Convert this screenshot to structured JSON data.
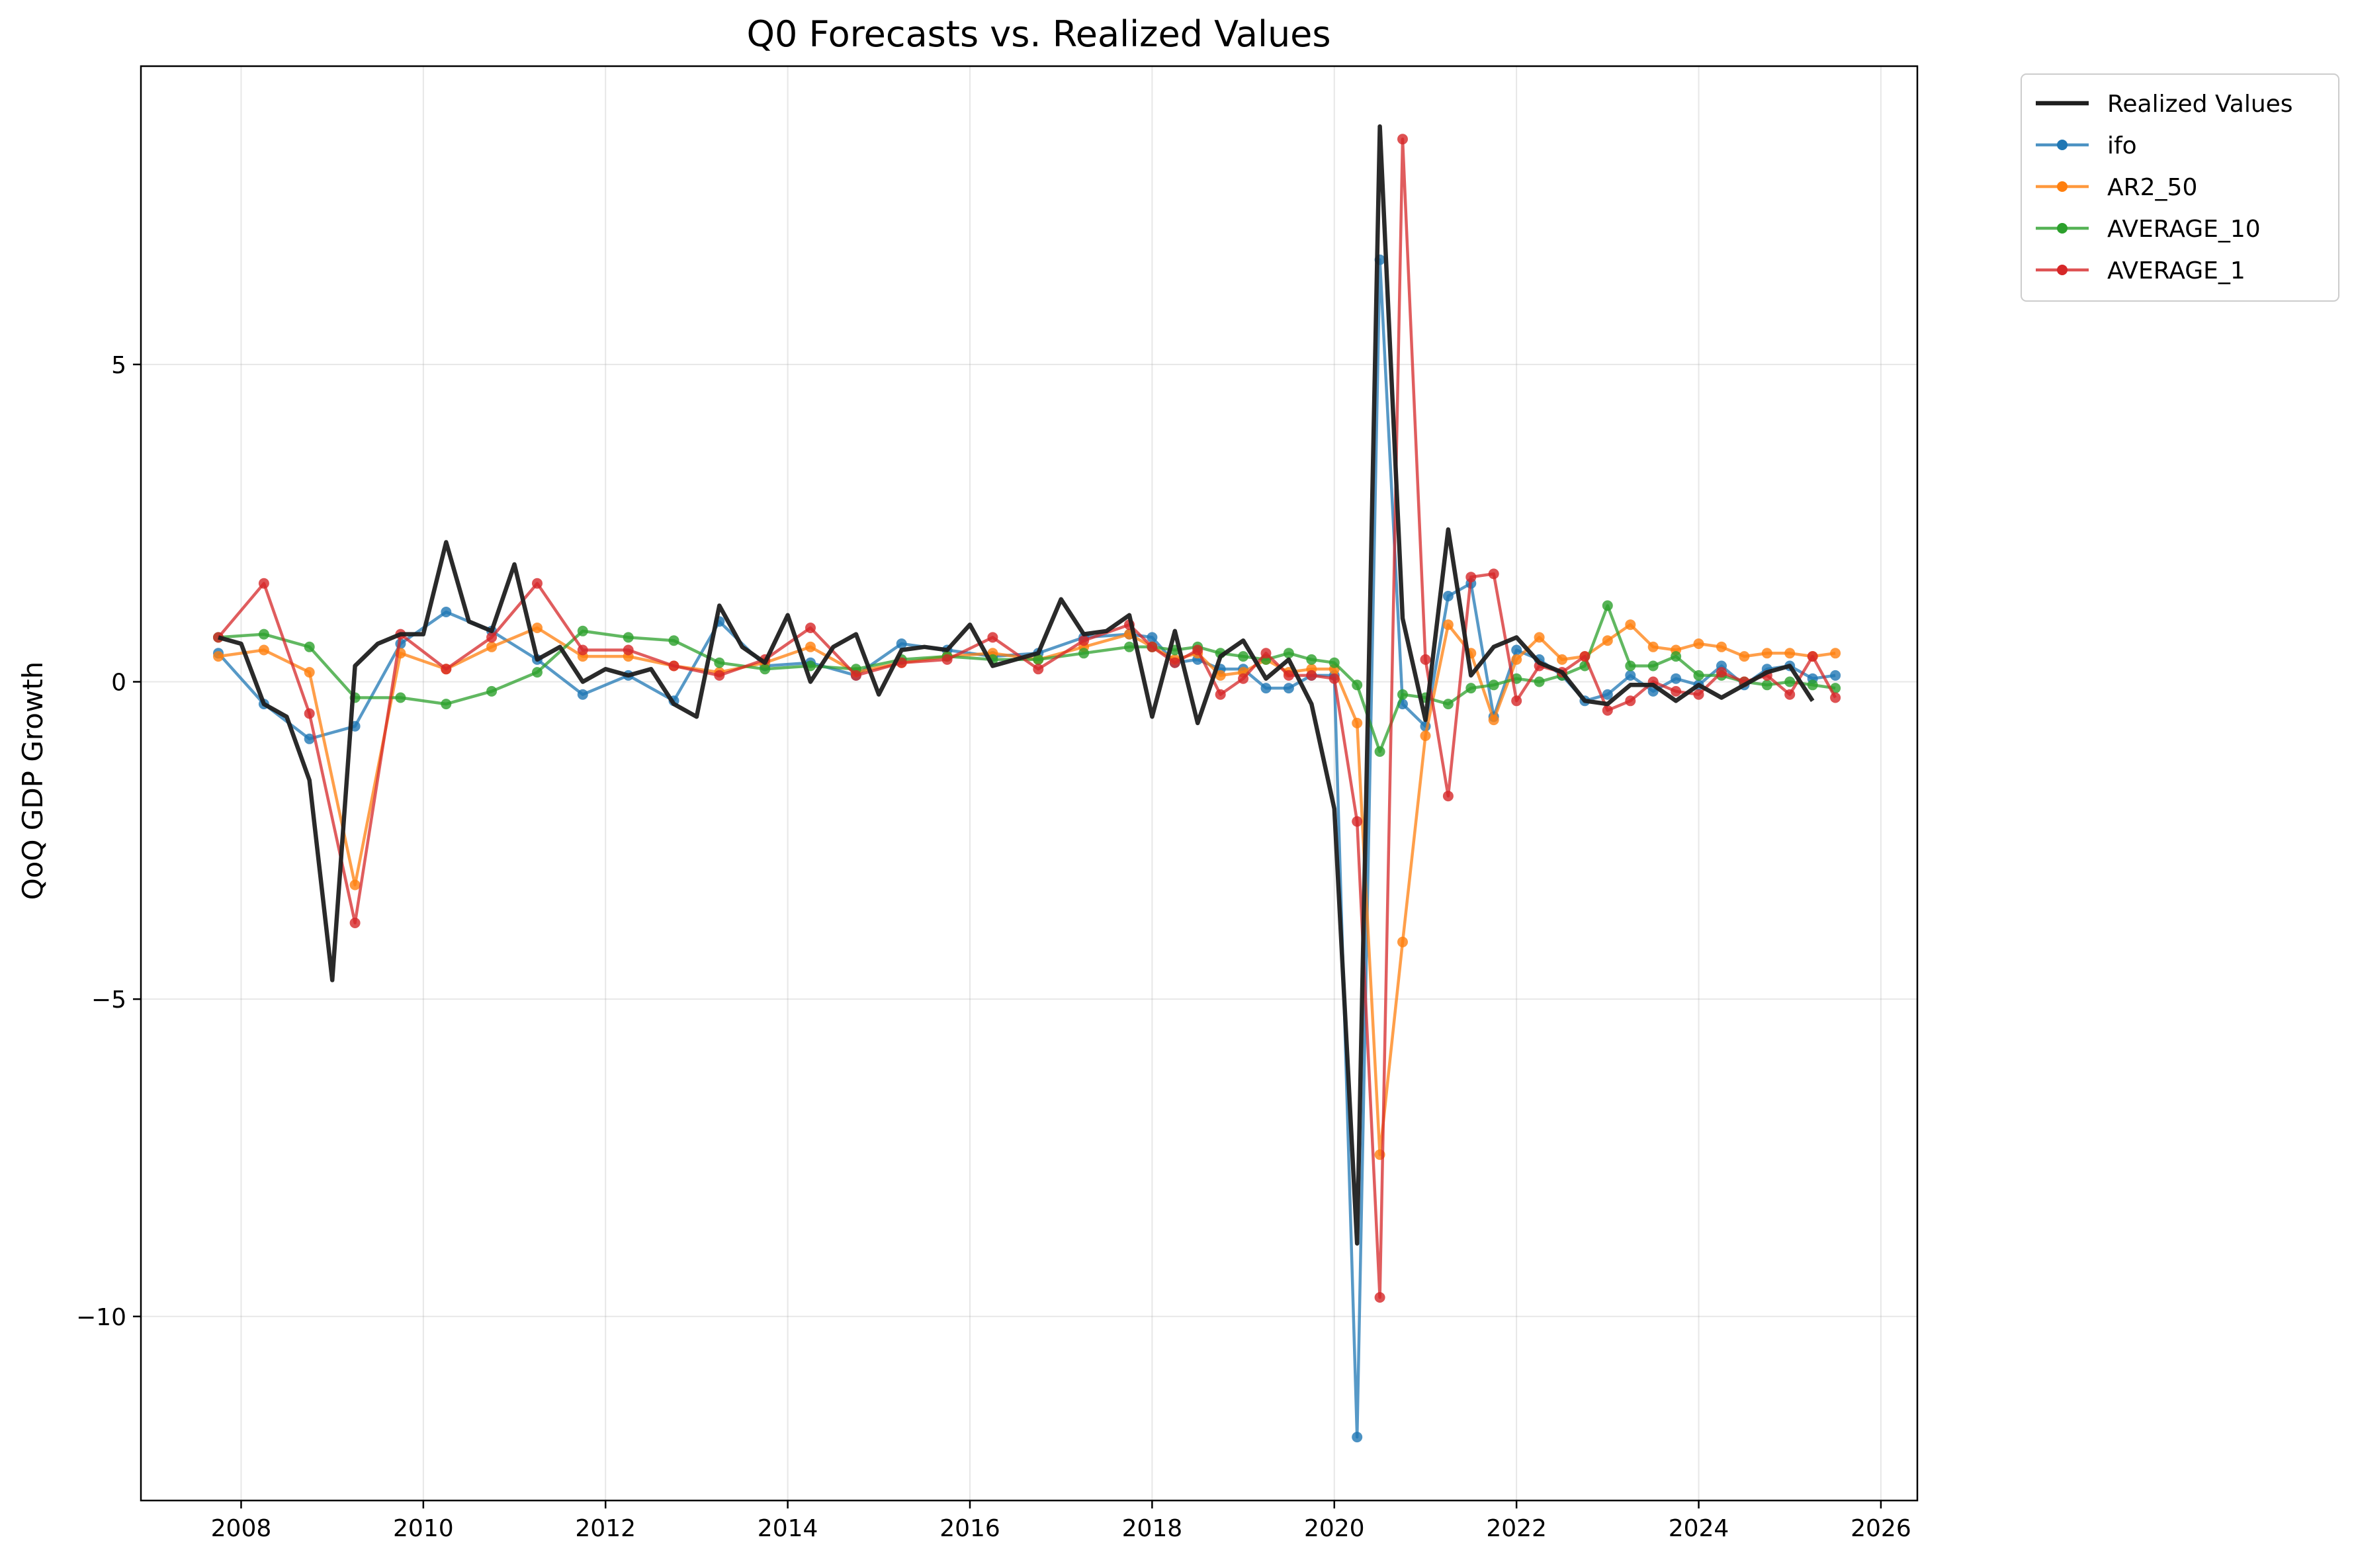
{
  "chart_data": {
    "type": "line",
    "title": "Q0 Forecasts vs. Realized Values",
    "xlabel": "",
    "ylabel": "QoQ GDP Growth",
    "xlim": [
      2006.9,
      2026.4
    ],
    "ylim": [
      -12.9,
      9.7
    ],
    "x_ticks": [
      2008,
      2010,
      2012,
      2014,
      2016,
      2018,
      2020,
      2022,
      2024,
      2026
    ],
    "x_tick_labels": [
      "2008",
      "2010",
      "2012",
      "2014",
      "2016",
      "2018",
      "2020",
      "2022",
      "2024",
      "2026"
    ],
    "y_ticks": [
      -10,
      -5,
      0,
      5
    ],
    "y_tick_labels": [
      "−10",
      "−5",
      "0",
      "5"
    ],
    "grid": true,
    "legend_position": "outside-top-right",
    "series": [
      {
        "name": "Realized Values",
        "color": "#1f1f1f",
        "markers": false,
        "x": [
          2007.75,
          2008.0,
          2008.25,
          2008.5,
          2008.75,
          2009.0,
          2009.25,
          2009.5,
          2009.75,
          2010.0,
          2010.25,
          2010.5,
          2010.75,
          2011.0,
          2011.25,
          2011.5,
          2011.75,
          2012.0,
          2012.25,
          2012.5,
          2012.75,
          2013.0,
          2013.25,
          2013.5,
          2013.75,
          2014.0,
          2014.25,
          2014.5,
          2014.75,
          2015.0,
          2015.25,
          2015.5,
          2015.75,
          2016.0,
          2016.25,
          2016.5,
          2016.75,
          2017.0,
          2017.25,
          2017.5,
          2017.75,
          2018.0,
          2018.25,
          2018.5,
          2018.75,
          2019.0,
          2019.25,
          2019.5,
          2019.75,
          2020.0,
          2020.25,
          2020.5,
          2020.75,
          2021.0,
          2021.25,
          2021.5,
          2021.75,
          2022.0,
          2022.25,
          2022.5,
          2022.75,
          2023.0,
          2023.25,
          2023.5,
          2023.75,
          2024.0,
          2024.25,
          2024.5,
          2024.75,
          2025.0,
          2025.25
        ],
        "y": [
          0.7,
          0.6,
          -0.35,
          -0.55,
          -1.55,
          -4.7,
          0.25,
          0.6,
          0.75,
          0.75,
          2.2,
          0.95,
          0.8,
          1.85,
          0.35,
          0.55,
          0.0,
          0.2,
          0.1,
          0.2,
          -0.35,
          -0.55,
          1.2,
          0.55,
          0.3,
          1.05,
          0.0,
          0.55,
          0.75,
          -0.2,
          0.5,
          0.55,
          0.5,
          0.9,
          0.25,
          0.35,
          0.45,
          1.3,
          0.75,
          0.8,
          1.05,
          -0.55,
          0.8,
          -0.65,
          0.4,
          0.65,
          0.05,
          0.35,
          -0.35,
          -2.0,
          -8.85,
          8.75,
          1.0,
          -0.6,
          2.4,
          0.1,
          0.55,
          0.7,
          0.3,
          0.15,
          -0.3,
          -0.35,
          -0.05,
          -0.05,
          -0.3,
          -0.05,
          -0.25,
          -0.05,
          0.15,
          0.25,
          -0.3
        ]
      },
      {
        "name": "ifo",
        "color": "#1f77b4",
        "markers": true,
        "x": [
          2007.75,
          2008.25,
          2008.75,
          2009.25,
          2009.75,
          2010.25,
          2010.75,
          2011.25,
          2011.75,
          2012.25,
          2012.75,
          2013.25,
          2013.75,
          2014.25,
          2014.75,
          2015.25,
          2015.75,
          2016.25,
          2016.75,
          2017.25,
          2017.75,
          2018.0,
          2018.25,
          2018.5,
          2018.75,
          2019.0,
          2019.25,
          2019.5,
          2019.75,
          2020.0,
          2020.25,
          2020.5,
          2020.75,
          2021.0,
          2021.25,
          2021.5,
          2021.75,
          2022.0,
          2022.25,
          2022.5,
          2022.75,
          2023.0,
          2023.25,
          2023.5,
          2023.75,
          2024.0,
          2024.25,
          2024.5,
          2024.75,
          2025.0,
          2025.25,
          2025.5
        ],
        "y": [
          0.45,
          -0.35,
          -0.9,
          -0.7,
          0.6,
          1.1,
          0.8,
          0.35,
          -0.2,
          0.1,
          -0.3,
          0.95,
          0.25,
          0.3,
          0.1,
          0.6,
          0.5,
          0.4,
          0.45,
          0.7,
          0.75,
          0.7,
          0.3,
          0.35,
          0.2,
          0.2,
          -0.1,
          -0.1,
          0.1,
          0.1,
          -11.9,
          6.65,
          -0.35,
          -0.7,
          1.35,
          1.55,
          -0.55,
          0.5,
          0.35,
          0.1,
          -0.3,
          -0.2,
          0.1,
          -0.15,
          0.05,
          -0.05,
          0.25,
          -0.05,
          0.2,
          0.25,
          0.05,
          0.1
        ]
      },
      {
        "name": "AR2_50",
        "color": "#ff7f0e",
        "markers": true,
        "x": [
          2007.75,
          2008.25,
          2008.75,
          2009.25,
          2009.75,
          2010.25,
          2010.75,
          2011.25,
          2011.75,
          2012.25,
          2012.75,
          2013.25,
          2013.75,
          2014.25,
          2014.75,
          2015.25,
          2015.75,
          2016.25,
          2016.75,
          2017.25,
          2017.75,
          2018.0,
          2018.25,
          2018.5,
          2018.75,
          2019.0,
          2019.25,
          2019.5,
          2019.75,
          2020.0,
          2020.25,
          2020.5,
          2020.75,
          2021.0,
          2021.25,
          2021.5,
          2021.75,
          2022.0,
          2022.25,
          2022.5,
          2022.75,
          2023.0,
          2023.25,
          2023.5,
          2023.75,
          2024.0,
          2024.25,
          2024.5,
          2024.75,
          2025.0,
          2025.25,
          2025.5
        ],
        "y": [
          0.4,
          0.5,
          0.15,
          -3.2,
          0.45,
          0.2,
          0.55,
          0.85,
          0.4,
          0.4,
          0.25,
          0.15,
          0.3,
          0.55,
          0.15,
          0.3,
          0.4,
          0.45,
          0.35,
          0.55,
          0.75,
          0.55,
          0.35,
          0.45,
          0.1,
          0.15,
          0.35,
          0.15,
          0.2,
          0.2,
          -0.65,
          -7.45,
          -4.1,
          -0.85,
          0.9,
          0.45,
          -0.6,
          0.35,
          0.7,
          0.35,
          0.4,
          0.65,
          0.9,
          0.55,
          0.5,
          0.6,
          0.55,
          0.4,
          0.45,
          0.45,
          0.4,
          0.45
        ]
      },
      {
        "name": "AVERAGE_10",
        "color": "#2ca02c",
        "markers": true,
        "x": [
          2007.75,
          2008.25,
          2008.75,
          2009.25,
          2009.75,
          2010.25,
          2010.75,
          2011.25,
          2011.75,
          2012.25,
          2012.75,
          2013.25,
          2013.75,
          2014.25,
          2014.75,
          2015.25,
          2015.75,
          2016.25,
          2016.75,
          2017.25,
          2017.75,
          2018.0,
          2018.25,
          2018.5,
          2018.75,
          2019.0,
          2019.25,
          2019.5,
          2019.75,
          2020.0,
          2020.25,
          2020.5,
          2020.75,
          2021.0,
          2021.25,
          2021.5,
          2021.75,
          2022.0,
          2022.25,
          2022.5,
          2022.75,
          2023.0,
          2023.25,
          2023.5,
          2023.75,
          2024.0,
          2024.25,
          2024.5,
          2024.75,
          2025.0,
          2025.25,
          2025.5
        ],
        "y": [
          0.7,
          0.75,
          0.55,
          -0.25,
          -0.25,
          -0.35,
          -0.15,
          0.15,
          0.8,
          0.7,
          0.65,
          0.3,
          0.2,
          0.25,
          0.2,
          0.35,
          0.4,
          0.35,
          0.35,
          0.45,
          0.55,
          0.55,
          0.5,
          0.55,
          0.45,
          0.4,
          0.35,
          0.45,
          0.35,
          0.3,
          -0.05,
          -1.1,
          -0.2,
          -0.25,
          -0.35,
          -0.1,
          -0.05,
          0.05,
          0.0,
          0.1,
          0.25,
          1.2,
          0.25,
          0.25,
          0.4,
          0.1,
          0.1,
          0.0,
          -0.05,
          0.0,
          -0.05,
          -0.1
        ]
      },
      {
        "name": "AVERAGE_1",
        "color": "#d62728",
        "markers": true,
        "x": [
          2007.75,
          2008.25,
          2008.75,
          2009.25,
          2009.75,
          2010.25,
          2010.75,
          2011.25,
          2011.75,
          2012.25,
          2012.75,
          2013.25,
          2013.75,
          2014.25,
          2014.75,
          2015.25,
          2015.75,
          2016.25,
          2016.75,
          2017.25,
          2017.75,
          2018.0,
          2018.25,
          2018.5,
          2018.75,
          2019.0,
          2019.25,
          2019.5,
          2019.75,
          2020.0,
          2020.25,
          2020.5,
          2020.75,
          2021.0,
          2021.25,
          2021.5,
          2021.75,
          2022.0,
          2022.25,
          2022.5,
          2022.75,
          2023.0,
          2023.25,
          2023.5,
          2023.75,
          2024.0,
          2024.25,
          2024.5,
          2024.75,
          2025.0,
          2025.25,
          2025.5
        ],
        "y": [
          0.7,
          1.55,
          -0.5,
          -3.8,
          0.75,
          0.2,
          0.7,
          1.55,
          0.5,
          0.5,
          0.25,
          0.1,
          0.35,
          0.85,
          0.1,
          0.3,
          0.35,
          0.7,
          0.2,
          0.65,
          0.9,
          0.55,
          0.3,
          0.5,
          -0.2,
          0.05,
          0.45,
          0.1,
          0.1,
          0.05,
          -2.2,
          -9.7,
          8.55,
          0.35,
          -1.8,
          1.65,
          1.7,
          -0.3,
          0.25,
          0.15,
          0.4,
          -0.45,
          -0.3,
          0.0,
          -0.15,
          -0.2,
          0.15,
          0.0,
          0.1,
          -0.2,
          0.4,
          -0.25
        ]
      }
    ]
  }
}
